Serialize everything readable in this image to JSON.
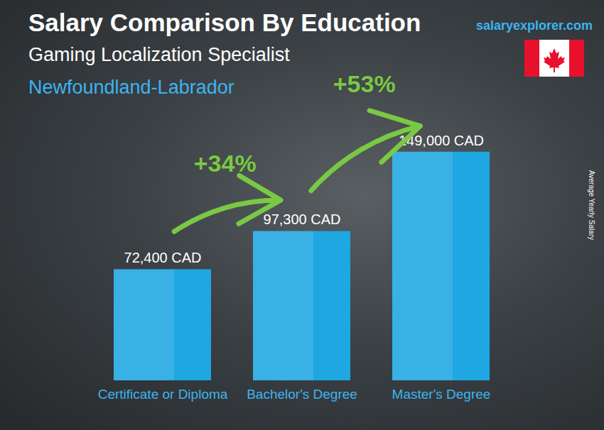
{
  "chart_data": {
    "type": "bar",
    "title": "Salary Comparison By Education",
    "subtitle": "Gaming Localization Specialist",
    "region": "Newfoundland-Labrador",
    "source": "salaryexplorer.com",
    "y_label": "Average Yearly Salary",
    "categories": [
      "Certificate or Diploma",
      "Bachelor's Degree",
      "Master's Degree"
    ],
    "values": [
      72400,
      97300,
      149000
    ],
    "value_labels": [
      "72,400 CAD",
      "97,300 CAD",
      "149,000 CAD"
    ],
    "data_labels": true,
    "color": "#1ea7e1",
    "ylim": [
      0,
      160000
    ],
    "tick_labels": "x",
    "grid": false,
    "annotations": [
      {
        "text": "+34%",
        "from": "Certificate or Diploma",
        "to": "Bachelor's Degree"
      },
      {
        "text": "+53%",
        "from": "Bachelor's Degree",
        "to": "Master's Degree"
      }
    ]
  }
}
